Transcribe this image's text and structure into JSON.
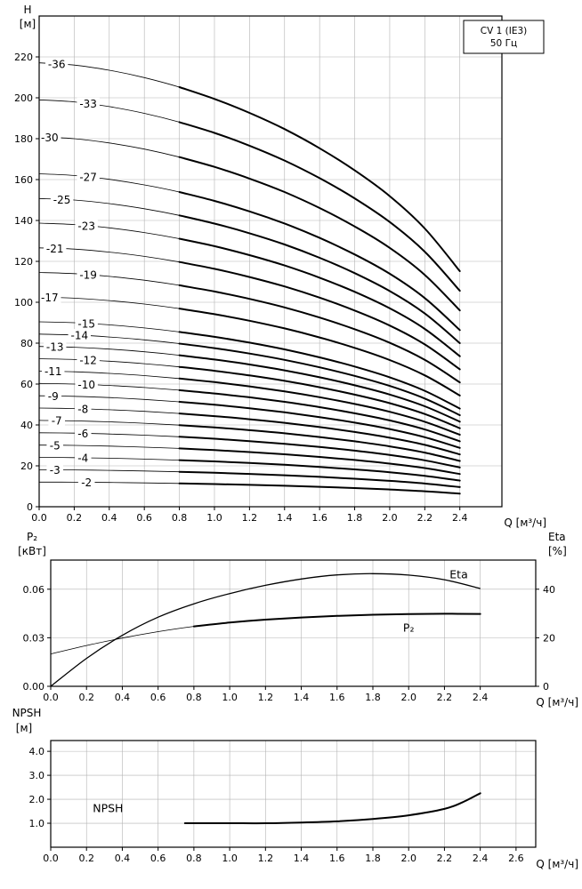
{
  "page": {
    "background": "#ffffff",
    "ink": "#000000",
    "grid_color": "#b3b3b3"
  },
  "chart_data": [
    {
      "type": "line",
      "name": "head-flow",
      "title_box_lines": [
        "CV 1 (IE3)",
        "50 Гц"
      ],
      "ylabel_lines": [
        "H",
        "[м]"
      ],
      "xlabel": "Q [м³/ч]",
      "xlim": [
        0,
        2.64
      ],
      "ylim": [
        0,
        240
      ],
      "xticks": [
        [
          0,
          "0.0"
        ],
        [
          0.2,
          "0.2"
        ],
        [
          0.4,
          "0.4"
        ],
        [
          0.6,
          "0.6"
        ],
        [
          0.8,
          "0.8"
        ],
        [
          1,
          "1.0"
        ],
        [
          1.2,
          "1.2"
        ],
        [
          1.4,
          "1.4"
        ],
        [
          1.6,
          "1.6"
        ],
        [
          1.8,
          "1.8"
        ],
        [
          2,
          "2.0"
        ],
        [
          2.2,
          "2.2"
        ],
        [
          2.4,
          "2.4"
        ]
      ],
      "yticks": [
        [
          0,
          "0"
        ],
        [
          20,
          "20"
        ],
        [
          40,
          "40"
        ],
        [
          60,
          "60"
        ],
        [
          80,
          "80"
        ],
        [
          100,
          "100"
        ],
        [
          120,
          "120"
        ],
        [
          140,
          "140"
        ],
        [
          160,
          "160"
        ],
        [
          180,
          "180"
        ],
        [
          200,
          "200"
        ],
        [
          220,
          "220"
        ]
      ],
      "grid": true,
      "duty_min_q": 0.8,
      "q": [
        0,
        0.2,
        0.4,
        0.6,
        0.8,
        1.0,
        1.2,
        1.4,
        1.6,
        1.8,
        2.0,
        2.2,
        2.4
      ],
      "per_stage_head": [
        6.03,
        6.0,
        5.93,
        5.83,
        5.7,
        5.54,
        5.35,
        5.13,
        4.87,
        4.57,
        4.22,
        3.78,
        3.2
      ],
      "series": [
        {
          "label": "-36",
          "stages": 36,
          "label_q": 0.1
        },
        {
          "label": "-33",
          "stages": 33,
          "label_q": 0.28
        },
        {
          "label": "-30",
          "stages": 30,
          "label_q": 0.06
        },
        {
          "label": "-27",
          "stages": 27,
          "label_q": 0.28
        },
        {
          "label": "-25",
          "stages": 25,
          "label_q": 0.13
        },
        {
          "label": "-23",
          "stages": 23,
          "label_q": 0.27
        },
        {
          "label": "-21",
          "stages": 21,
          "label_q": 0.09
        },
        {
          "label": "-19",
          "stages": 19,
          "label_q": 0.28
        },
        {
          "label": "-17",
          "stages": 17,
          "label_q": 0.06
        },
        {
          "label": "-15",
          "stages": 15,
          "label_q": 0.27
        },
        {
          "label": "-14",
          "stages": 14,
          "label_q": 0.23
        },
        {
          "label": "-13",
          "stages": 13,
          "label_q": 0.09
        },
        {
          "label": "-12",
          "stages": 12,
          "label_q": 0.28
        },
        {
          "label": "-11",
          "stages": 11,
          "label_q": 0.08
        },
        {
          "label": "-10",
          "stages": 10,
          "label_q": 0.27
        },
        {
          "label": "-9",
          "stages": 9,
          "label_q": 0.08
        },
        {
          "label": "-8",
          "stages": 8,
          "label_q": 0.25
        },
        {
          "label": "-7",
          "stages": 7,
          "label_q": 0.1
        },
        {
          "label": "-6",
          "stages": 6,
          "label_q": 0.25
        },
        {
          "label": "-5",
          "stages": 5,
          "label_q": 0.09
        },
        {
          "label": "-4",
          "stages": 4,
          "label_q": 0.25
        },
        {
          "label": "-3",
          "stages": 3,
          "label_q": 0.09
        },
        {
          "label": "-2",
          "stages": 2,
          "label_q": 0.27
        }
      ]
    },
    {
      "type": "line",
      "name": "power-efficiency",
      "ylabel_left_lines": [
        "P₂",
        "[кВт]"
      ],
      "ylabel_right_lines": [
        "Eta",
        "[%]"
      ],
      "xlabel": "Q [м³/ч]",
      "xlim": [
        0,
        2.71
      ],
      "ylim_left": [
        0,
        0.078
      ],
      "ylim_right": [
        0,
        52
      ],
      "xticks": [
        [
          0,
          "0.0"
        ],
        [
          0.2,
          "0.2"
        ],
        [
          0.4,
          "0.4"
        ],
        [
          0.6,
          "0.6"
        ],
        [
          0.8,
          "0.8"
        ],
        [
          1,
          "1.0"
        ],
        [
          1.2,
          "1.2"
        ],
        [
          1.4,
          "1.4"
        ],
        [
          1.6,
          "1.6"
        ],
        [
          1.8,
          "1.8"
        ],
        [
          2,
          "2.0"
        ],
        [
          2.2,
          "2.2"
        ],
        [
          2.4,
          "2.4"
        ]
      ],
      "yticks_left": [
        [
          0,
          "0.00"
        ],
        [
          0.03,
          "0.03"
        ],
        [
          0.06,
          "0.06"
        ]
      ],
      "yticks_right": [
        [
          0,
          "0"
        ],
        [
          20,
          "20"
        ],
        [
          40,
          "40"
        ]
      ],
      "grid": true,
      "duty_min_q": 0.8,
      "series": [
        {
          "name": "Eta",
          "axis": "right",
          "label": "Eta",
          "label_at": [
            2.28,
            46
          ],
          "style": "medium",
          "x": [
            0,
            0.2,
            0.4,
            0.6,
            0.8,
            1.0,
            1.2,
            1.4,
            1.6,
            1.8,
            2.0,
            2.2,
            2.4
          ],
          "y": [
            0,
            11.5,
            21,
            28.5,
            34,
            38.2,
            41.6,
            44.2,
            45.9,
            46.4,
            45.8,
            43.9,
            40.3
          ]
        },
        {
          "name": "P2",
          "axis": "left",
          "label": "P₂",
          "label_at": [
            2.0,
            0.036
          ],
          "style": "duty",
          "x": [
            0,
            0.2,
            0.4,
            0.6,
            0.8,
            1.0,
            1.2,
            1.4,
            1.6,
            1.8,
            2.0,
            2.2,
            2.4
          ],
          "y": [
            0.02,
            0.0252,
            0.0298,
            0.0338,
            0.037,
            0.0394,
            0.0412,
            0.0425,
            0.0435,
            0.0442,
            0.0446,
            0.0448,
            0.0447
          ]
        }
      ]
    },
    {
      "type": "line",
      "name": "npsh",
      "ylabel_lines": [
        "NPSH",
        "[м]"
      ],
      "xlabel": "Q [м³/ч]",
      "xlim": [
        0,
        2.71
      ],
      "ylim": [
        0,
        4.45
      ],
      "xticks": [
        [
          0,
          "0.0"
        ],
        [
          0.2,
          "0.2"
        ],
        [
          0.4,
          "0.4"
        ],
        [
          0.6,
          "0.6"
        ],
        [
          0.8,
          "0.8"
        ],
        [
          1,
          "1.0"
        ],
        [
          1.2,
          "1.2"
        ],
        [
          1.4,
          "1.4"
        ],
        [
          1.6,
          "1.6"
        ],
        [
          1.8,
          "1.8"
        ],
        [
          2,
          "2.0"
        ],
        [
          2.2,
          "2.2"
        ],
        [
          2.4,
          "2.4"
        ],
        [
          2.6,
          "2.6"
        ]
      ],
      "yticks": [
        [
          1,
          "1.0"
        ],
        [
          2,
          "2.0"
        ],
        [
          3,
          "3.0"
        ],
        [
          4,
          "4.0"
        ]
      ],
      "grid": true,
      "series": [
        {
          "name": "NPSH",
          "axis": "left",
          "label": "NPSH",
          "label_at": [
            0.32,
            1.62
          ],
          "style": "thick",
          "x": [
            0.75,
            1.0,
            1.2,
            1.4,
            1.6,
            1.8,
            2.0,
            2.2,
            2.3,
            2.4
          ],
          "y": [
            1.0,
            1.0,
            1.0,
            1.03,
            1.08,
            1.18,
            1.33,
            1.6,
            1.87,
            2.25
          ]
        }
      ]
    }
  ]
}
